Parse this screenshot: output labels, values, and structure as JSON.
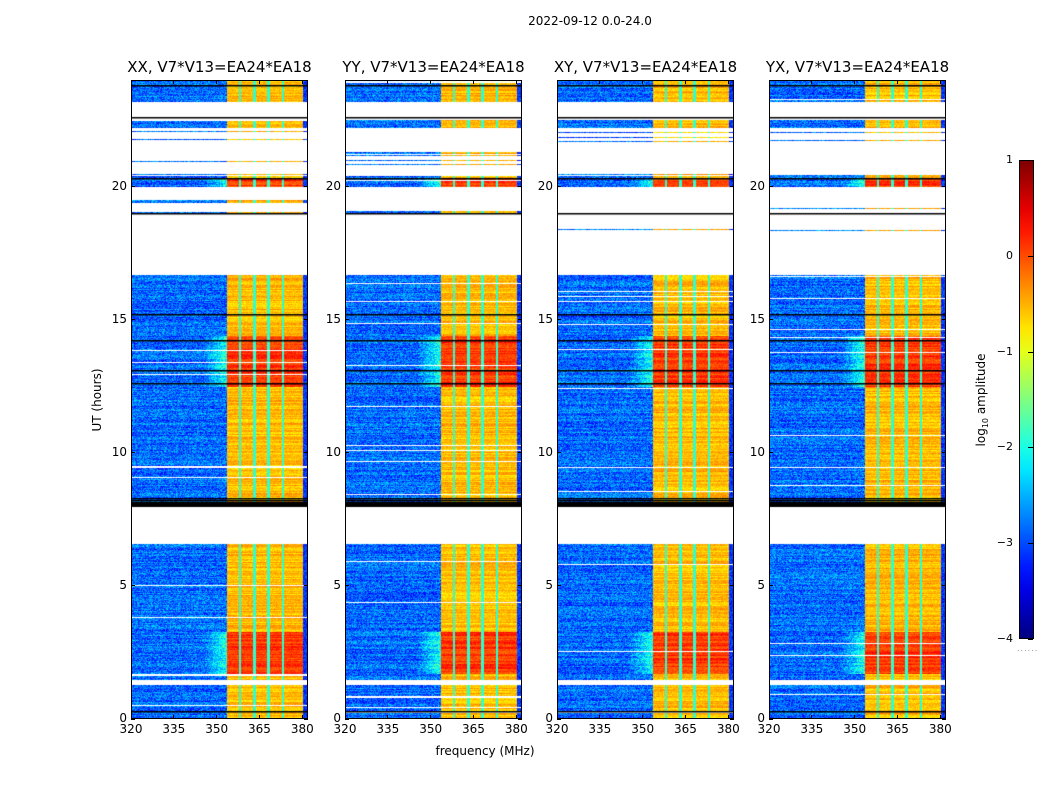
{
  "figure": {
    "suptitle": "2022-09-12 0.0-24.0"
  },
  "chart_data": {
    "type": "heatmap",
    "title": "2022-09-12 0.0-24.0",
    "xlabel": "frequency (MHz)",
    "ylabel": "UT (hours)",
    "xlim": [
      320,
      382
    ],
    "ylim": [
      0,
      24
    ],
    "xticks": [
      320,
      335,
      350,
      365,
      380
    ],
    "yticks": [
      0,
      5,
      10,
      15,
      20
    ],
    "colorbar": {
      "label": "log10 amplitude",
      "label_main": "log",
      "label_sub": "10",
      "label_rest": " amplitude",
      "colormap": "jet",
      "range": [
        -4,
        1
      ],
      "ticks": [
        1,
        0,
        -1,
        -2,
        -3,
        -4
      ],
      "tick_labels": [
        "1",
        "0",
        "−1",
        "−2",
        "−3",
        "−4"
      ]
    },
    "panels": [
      {
        "name": "XX",
        "title": "XX, V7*V13=EA24*EA18"
      },
      {
        "name": "YY",
        "title": "YY, V7*V13=EA24*EA18"
      },
      {
        "name": "XY",
        "title": "XY, V7*V13=EA24*EA18"
      },
      {
        "name": "YX",
        "title": "YX, V7*V13=EA24*EA18"
      }
    ],
    "rfi_band_mhz": [
      353.5,
      380
    ],
    "rfi_subband_edges_mhz": [
      358,
      363,
      368,
      373
    ],
    "blank_ut_intervals": [
      [
        6.6,
        8.0
      ],
      [
        22.5,
        23.2
      ],
      [
        16.7,
        18.3
      ],
      [
        17.3,
        17.5
      ],
      [
        18.5,
        18.9
      ],
      [
        19.5,
        20.0
      ],
      [
        21.3,
        21.7
      ],
      [
        20.5,
        20.8
      ],
      [
        1.3,
        1.5
      ]
    ],
    "sparse_ut_intervals": [
      [
        16.8,
        20.0
      ],
      [
        20.4,
        22.2
      ]
    ],
    "strong_ut_intervals": [
      [
        12.5,
        14.4
      ],
      [
        1.7,
        3.3
      ],
      [
        19.7,
        20.3
      ]
    ],
    "flag_black_ut": [
      8.2,
      8.3,
      0.3,
      14.2,
      13.1,
      12.6,
      15.2,
      19.0,
      20.3,
      22.6,
      23.8
    ]
  }
}
